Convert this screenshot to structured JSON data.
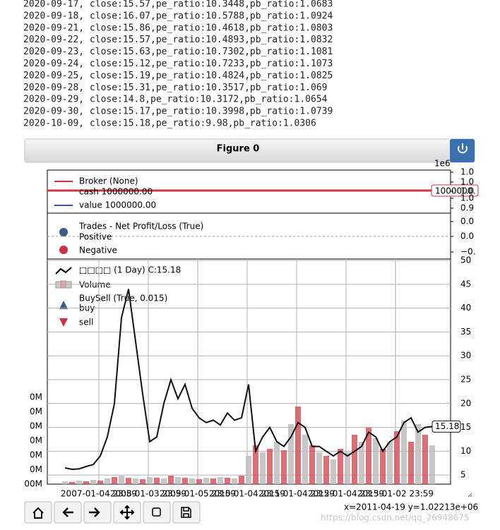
{
  "console": [
    "2020-09-17, close:15.57,pe_ratio:10.3448,pb_ratio:1.0683",
    "2020-09-18, close:16.07,pe_ratio:10.5788,pb_ratio:1.0924",
    "2020-09-21, close:15.86,pe_ratio:10.4618,pb_ratio:1.0803",
    "2020-09-22, close:15.57,pe_ratio:10.4893,pb_ratio:1.0832",
    "2020-09-23, close:15.63,pe_ratio:10.7302,pb_ratio:1.1081",
    "2020-09-24, close:15.12,pe_ratio:10.7233,pb_ratio:1.1073",
    "2020-09-25, close:15.19,pe_ratio:10.4824,pb_ratio:1.0825",
    "2020-09-28, close:15.31,pe_ratio:10.3517,pb_ratio:1.069",
    "2020-09-29, close:14.8,pe_ratio:10.3172,pb_ratio:1.0654",
    "2020-09-30, close:15.17,pe_ratio:10.3998,pb_ratio:1.0739",
    "2020-10-09, close:15.18,pe_ratio:9.98,pb_ratio:1.0306"
  ],
  "figure": {
    "title": "Figure 0",
    "broker": {
      "legend": [
        "Broker (None)",
        "cash 1000000.00",
        "value 1000000.00"
      ],
      "offset": "1e6",
      "ytick_labels": [
        "1.0",
        "1.0",
        "1.0",
        "1.0",
        "0.9"
      ],
      "cash_label": "1000000."
    },
    "trades": {
      "legend": [
        "Trades - Net Profit/Loss (True)",
        "Positive",
        "Negative"
      ],
      "ytick_labels": [
        "0.0",
        "0.0",
        "−0."
      ]
    },
    "price": {
      "legend": [
        "□□□□ (1 Day) C:15.18",
        "Volume",
        "BuySell (True, 0.015)",
        "buy",
        "sell"
      ],
      "ylim": [
        3.1,
        50.3
      ],
      "yticks": [
        5,
        10,
        15,
        20,
        25,
        30,
        35,
        40,
        45,
        50
      ],
      "values": [
        6.5,
        6.2,
        6.3,
        6.8,
        7.2,
        9,
        13,
        20,
        38,
        44,
        33,
        22,
        12,
        13,
        20,
        25,
        21,
        24,
        19,
        17,
        16,
        16.5,
        15.5,
        18,
        16.5,
        17,
        24,
        10,
        13,
        15,
        12,
        11,
        13,
        16,
        15,
        11,
        11,
        10,
        9,
        10,
        9,
        10,
        11,
        14,
        13,
        10,
        12,
        13,
        16,
        17,
        14,
        15,
        15.18
      ],
      "volume": [
        4,
        3,
        5,
        4,
        6,
        5,
        8,
        10,
        12,
        9,
        8,
        7,
        10,
        9,
        8,
        12,
        10,
        9,
        8,
        7,
        9,
        8,
        10,
        9,
        8,
        12,
        40,
        55,
        45,
        50,
        60,
        48,
        85,
        110,
        70,
        55,
        45,
        40,
        35,
        50,
        45,
        70,
        60,
        80,
        65,
        50,
        60,
        75,
        90,
        60,
        85,
        70,
        55
      ],
      "last_label": "15.18",
      "volume_labels": [
        "00M",
        "0M",
        "0M",
        "0M",
        "0M",
        "0M",
        "0M"
      ],
      "xtick_labels": [
        "2007-01-04 23:59",
        "2008-01-03 23:59",
        "2009-01-05 23:59",
        "2010-01-04 23:59",
        "2011-01-04 23:59",
        "2012-01-04 23:59",
        "2013-01-02 23:59"
      ]
    },
    "status": "x=2011-04-19 y=1.02213e+06",
    "watermark": "https://blog.csdn.net/qq_26948675"
  }
}
